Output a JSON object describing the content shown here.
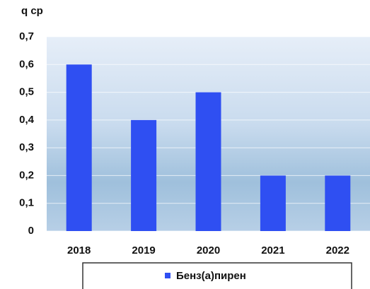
{
  "chart_data": {
    "type": "bar",
    "y_label": "q ср",
    "categories": [
      "2018",
      "2019",
      "2020",
      "2021",
      "2022"
    ],
    "series": [
      {
        "name": "Бенз(а)пирен",
        "color": "#2f4ff2",
        "values": [
          0.6,
          0.4,
          0.5,
          0.2,
          0.2
        ]
      }
    ],
    "ylim": [
      0,
      0.7
    ],
    "yticks": [
      0,
      {
        "value": 0.1,
        "label": "0,1"
      },
      {
        "value": 0.2,
        "label": "0,2"
      },
      {
        "value": 0.3,
        "label": "0,3"
      },
      {
        "value": 0.4,
        "label": "0,4"
      },
      {
        "value": 0.5,
        "label": "0,5"
      },
      {
        "value": 0.6,
        "label": "0,6"
      },
      {
        "value": 0.7,
        "label": "0,7"
      }
    ],
    "grid": true,
    "legend": "bottom"
  }
}
